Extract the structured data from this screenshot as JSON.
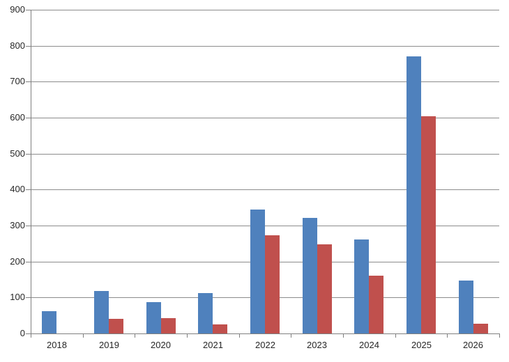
{
  "chart_data": {
    "type": "bar",
    "title": "",
    "xlabel": "",
    "ylabel": "",
    "categories": [
      "2018",
      "2019",
      "2020",
      "2021",
      "2022",
      "2023",
      "2024",
      "2025",
      "2026"
    ],
    "series": [
      {
        "name": "series-blue",
        "color": "#4F81BD",
        "values": [
          62,
          118,
          88,
          113,
          345,
          321,
          262,
          771,
          147
        ]
      },
      {
        "name": "series-red",
        "color": "#C0504D",
        "values": [
          0,
          40,
          43,
          25,
          273,
          247,
          160,
          604,
          28
        ]
      }
    ],
    "ylim": [
      0,
      900
    ],
    "ytick_step": 100,
    "yticks": [
      0,
      100,
      200,
      300,
      400,
      500,
      600,
      700,
      800,
      900
    ],
    "grid": true,
    "legend": "none",
    "colors": {
      "background": "#FFFFFF",
      "axis": "#808080",
      "gridline": "#8C8C8C",
      "label": "#262626"
    }
  }
}
